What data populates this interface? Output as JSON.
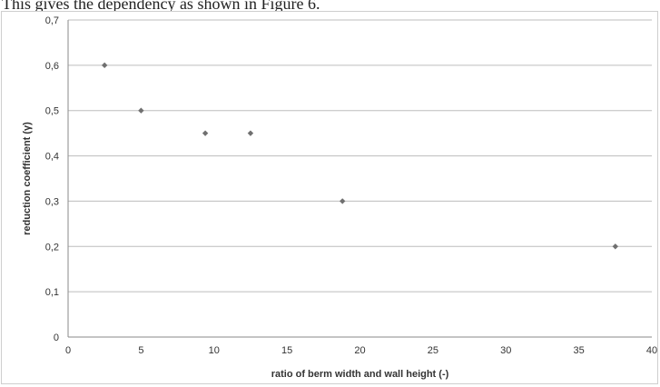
{
  "page": {
    "caption": "This gives the dependency as shown in Figure 6."
  },
  "chart_data": {
    "type": "scatter",
    "title": "",
    "xlabel": "ratio of berm width and wall height (-)",
    "ylabel": "reduction coefficient (γ)",
    "xlim": [
      0,
      40
    ],
    "ylim": [
      0,
      0.7
    ],
    "x_ticks": [
      0,
      5,
      10,
      15,
      20,
      25,
      30,
      35,
      40
    ],
    "y_ticks": [
      0,
      0.1,
      0.2,
      0.3,
      0.4,
      0.5,
      0.6,
      0.7
    ],
    "x_tick_labels": [
      "0",
      "5",
      "10",
      "15",
      "20",
      "25",
      "30",
      "35",
      "40"
    ],
    "y_tick_labels": [
      "0",
      "0,1",
      "0,2",
      "0,3",
      "0,4",
      "0,5",
      "0,6",
      "0,7"
    ],
    "grid": "horizontal",
    "legend": "none",
    "marker_color": "#707070",
    "points": [
      {
        "x": 2.5,
        "y": 0.6
      },
      {
        "x": 5.0,
        "y": 0.5
      },
      {
        "x": 9.4,
        "y": 0.45
      },
      {
        "x": 12.5,
        "y": 0.45
      },
      {
        "x": 18.8,
        "y": 0.3
      },
      {
        "x": 37.5,
        "y": 0.2
      }
    ]
  }
}
